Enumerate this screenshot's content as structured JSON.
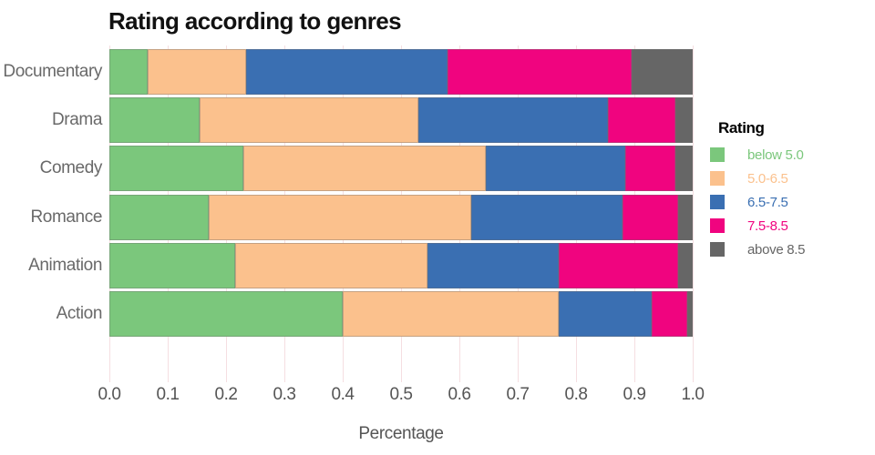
{
  "chart_data": {
    "type": "bar",
    "orientation": "horizontal-stacked",
    "title": "Rating according to genres",
    "xlabel": "Percentage",
    "legend_title": "Rating",
    "legend_position": "right",
    "categories": [
      "Documentary",
      "Drama",
      "Comedy",
      "Romance",
      "Animation",
      "Action"
    ],
    "series": [
      {
        "name": "below 5.0",
        "color": "#7BC77C",
        "values": [
          0.065,
          0.155,
          0.23,
          0.17,
          0.215,
          0.4
        ]
      },
      {
        "name": "5.0-6.5",
        "color": "#FBC18D",
        "values": [
          0.17,
          0.375,
          0.415,
          0.45,
          0.33,
          0.37
        ]
      },
      {
        "name": "6.5-7.5",
        "color": "#3A6FB2",
        "values": [
          0.345,
          0.325,
          0.24,
          0.26,
          0.225,
          0.16
        ]
      },
      {
        "name": "7.5-8.5",
        "color": "#F0047F",
        "values": [
          0.315,
          0.115,
          0.085,
          0.095,
          0.205,
          0.06
        ]
      },
      {
        "name": "above 8.5",
        "color": "#666666",
        "values": [
          0.105,
          0.03,
          0.03,
          0.025,
          0.025,
          0.01
        ]
      }
    ],
    "xlim": [
      0.0,
      1.0
    ],
    "x_ticks": [
      "0.0",
      "0.1",
      "0.2",
      "0.3",
      "0.4",
      "0.5",
      "0.6",
      "0.7",
      "0.8",
      "0.9",
      "1.0"
    ],
    "grid": "vertical",
    "grid_color": "#F5DEE1",
    "styles": {
      "title_color": "#111111",
      "tick_label_color": "#555555",
      "category_label_color": "#696969",
      "legend_title_color": "#000000",
      "background_color": "#FFFFFF"
    }
  }
}
